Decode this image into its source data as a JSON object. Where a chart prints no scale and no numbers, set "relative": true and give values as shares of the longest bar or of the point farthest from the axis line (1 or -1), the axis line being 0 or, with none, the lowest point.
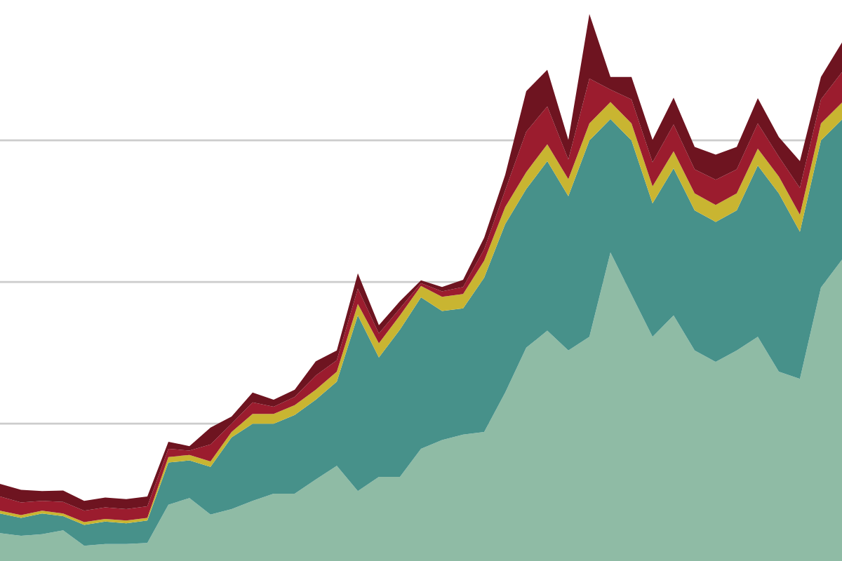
{
  "chart_data": {
    "type": "area",
    "stacked": true,
    "relative": true,
    "categories": [
      null,
      null,
      null,
      null,
      null,
      null,
      null,
      null,
      null,
      null,
      null,
      null,
      null,
      null,
      null,
      null,
      null,
      null,
      null,
      null,
      null,
      null,
      null,
      null,
      null,
      null,
      null,
      null,
      null,
      null,
      null,
      null,
      null,
      null,
      null,
      null,
      null,
      null,
      null,
      null,
      null
    ],
    "series": [
      {
        "color": "#8fbba5",
        "values": [
          0.051,
          0.046,
          0.049,
          0.056,
          0.028,
          0.031,
          0.031,
          0.033,
          0.103,
          0.115,
          0.085,
          0.095,
          0.11,
          0.123,
          0.123,
          0.149,
          0.174,
          0.128,
          0.154,
          0.154,
          0.205,
          0.221,
          0.231,
          0.236,
          0.308,
          0.39,
          0.421,
          0.385,
          0.41,
          0.564,
          0.487,
          0.41,
          0.449,
          0.385,
          0.364,
          0.385,
          0.41,
          0.346,
          0.333,
          0.5,
          0.551
        ]
      },
      {
        "color": "#47918a",
        "values": [
          0.036,
          0.033,
          0.038,
          0.026,
          0.038,
          0.041,
          0.038,
          0.041,
          0.077,
          0.069,
          0.087,
          0.131,
          0.141,
          0.128,
          0.144,
          0.146,
          0.154,
          0.321,
          0.218,
          0.269,
          0.277,
          0.236,
          0.231,
          0.282,
          0.308,
          0.29,
          0.31,
          0.282,
          0.359,
          0.244,
          0.282,
          0.244,
          0.269,
          0.256,
          0.256,
          0.256,
          0.313,
          0.326,
          0.269,
          0.269,
          0.256
        ]
      },
      {
        "color": "#c9b531",
        "values": [
          0.005,
          0.005,
          0.005,
          0.005,
          0.005,
          0.005,
          0.005,
          0.005,
          0.01,
          0.01,
          0.01,
          0.01,
          0.018,
          0.018,
          0.018,
          0.018,
          0.018,
          0.021,
          0.026,
          0.026,
          0.021,
          0.026,
          0.026,
          0.031,
          0.031,
          0.031,
          0.031,
          0.031,
          0.031,
          0.031,
          0.031,
          0.031,
          0.031,
          0.031,
          0.031,
          0.031,
          0.031,
          0.031,
          0.031,
          0.031,
          0.031
        ]
      },
      {
        "color": "#9b1c2e",
        "values": [
          0.026,
          0.023,
          0.018,
          0.021,
          0.021,
          0.021,
          0.021,
          0.021,
          0.015,
          0.008,
          0.031,
          0.015,
          0.021,
          0.013,
          0.015,
          0.026,
          0.021,
          0.028,
          0.018,
          0.013,
          0.005,
          0.01,
          0.013,
          0.021,
          0.031,
          0.074,
          0.069,
          0.036,
          0.082,
          0.023,
          0.044,
          0.044,
          0.049,
          0.044,
          0.046,
          0.044,
          0.046,
          0.036,
          0.049,
          0.044,
          0.056
        ]
      },
      {
        "color": "#6e1420",
        "values": [
          0.023,
          0.023,
          0.018,
          0.021,
          0.018,
          0.018,
          0.018,
          0.018,
          0.013,
          0.008,
          0.031,
          0.013,
          0.018,
          0.013,
          0.013,
          0.026,
          0.018,
          0.028,
          0.015,
          0.013,
          0.005,
          0.008,
          0.013,
          0.021,
          0.028,
          0.074,
          0.067,
          0.036,
          0.118,
          0.023,
          0.041,
          0.041,
          0.049,
          0.041,
          0.046,
          0.041,
          0.046,
          0.036,
          0.049,
          0.041,
          0.054
        ]
      }
    ],
    "ref_lines": [
      {
        "axis": "y",
        "value": 0.251,
        "color": "#cccccc"
      },
      {
        "axis": "y",
        "value": 0.51,
        "color": "#cccccc"
      },
      {
        "axis": "y",
        "value": 0.769,
        "color": "#cccccc"
      }
    ]
  }
}
